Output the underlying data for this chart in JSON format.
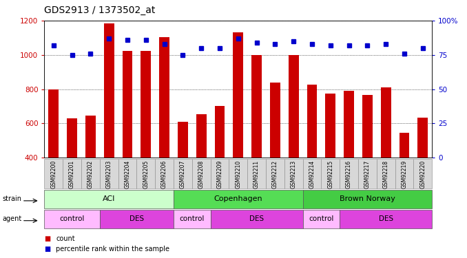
{
  "title": "GDS2913 / 1373502_at",
  "samples": [
    "GSM92200",
    "GSM92201",
    "GSM92202",
    "GSM92203",
    "GSM92204",
    "GSM92205",
    "GSM92206",
    "GSM92207",
    "GSM92208",
    "GSM92209",
    "GSM92210",
    "GSM92211",
    "GSM92212",
    "GSM92213",
    "GSM92214",
    "GSM92215",
    "GSM92216",
    "GSM92217",
    "GSM92218",
    "GSM92219",
    "GSM92220"
  ],
  "counts": [
    800,
    630,
    645,
    1185,
    1025,
    1025,
    1105,
    610,
    655,
    700,
    1130,
    1000,
    840,
    1000,
    825,
    775,
    790,
    765,
    810,
    545,
    635
  ],
  "percentiles": [
    82,
    75,
    76,
    87,
    86,
    86,
    83,
    75,
    80,
    80,
    87,
    84,
    83,
    85,
    83,
    82,
    82,
    82,
    83,
    76,
    80
  ],
  "ylim_left": [
    400,
    1200
  ],
  "ylim_right": [
    0,
    100
  ],
  "yticks_left": [
    400,
    600,
    800,
    1000,
    1200
  ],
  "yticks_right": [
    0,
    25,
    50,
    75,
    100
  ],
  "bar_color": "#cc0000",
  "dot_color": "#0000cc",
  "strain_groups": [
    {
      "label": "ACI",
      "start": 0,
      "end": 6,
      "color": "#ccffcc"
    },
    {
      "label": "Copenhagen",
      "start": 7,
      "end": 13,
      "color": "#55dd55"
    },
    {
      "label": "Brown Norway",
      "start": 14,
      "end": 20,
      "color": "#44cc44"
    }
  ],
  "agent_groups": [
    {
      "label": "control",
      "start": 0,
      "end": 2,
      "color": "#ffbbff"
    },
    {
      "label": "DES",
      "start": 3,
      "end": 6,
      "color": "#dd44dd"
    },
    {
      "label": "control",
      "start": 7,
      "end": 8,
      "color": "#ffbbff"
    },
    {
      "label": "DES",
      "start": 9,
      "end": 13,
      "color": "#dd44dd"
    },
    {
      "label": "control",
      "start": 14,
      "end": 15,
      "color": "#ffbbff"
    },
    {
      "label": "DES",
      "start": 16,
      "end": 20,
      "color": "#dd44dd"
    }
  ],
  "strain_label": "strain",
  "agent_label": "agent",
  "legend_count_label": "count",
  "legend_pct_label": "percentile rank within the sample",
  "bg_color": "#ffffff",
  "bar_width": 0.55,
  "title_fontsize": 10
}
